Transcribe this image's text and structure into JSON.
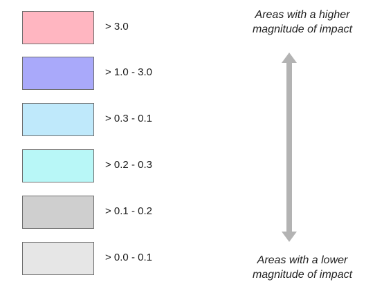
{
  "legend": {
    "items": [
      {
        "label": "> 3.0",
        "color": "#ffb6c1"
      },
      {
        "label": "> 1.0 - 3.0",
        "color": "#a9a9fa"
      },
      {
        "label": "> 0.3 - 0.1",
        "color": "#bfe9fb"
      },
      {
        "label": "> 0.2 - 0.3",
        "color": "#b8f7f7"
      },
      {
        "label": "> 0.1 - 0.2",
        "color": "#cfcfcf"
      },
      {
        "label": "> 0.0 - 0.1",
        "color": "#e6e6e6"
      }
    ]
  },
  "captions": {
    "top": {
      "line1": "Areas with a higher",
      "line2": "magnitude of impact"
    },
    "bottom": {
      "line1": "Areas with a lower",
      "line2": "magnitude of impact"
    }
  },
  "arrow": {
    "icon": "double-arrow-vertical-icon",
    "color": "#b3b3b3"
  }
}
